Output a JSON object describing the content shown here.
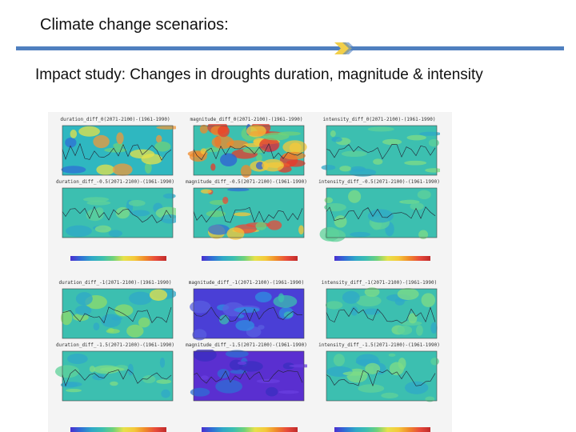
{
  "slide": {
    "title": "Climate change scenarios:",
    "subtitle": "Impact study: Changes in droughts duration, magnitude & intensity",
    "accent_color": "#4f7fbf"
  },
  "figure": {
    "panels": [
      {
        "id": "p00",
        "title": "duration_diff_0(2071-2100)-(1961-1990)",
        "palette": "mixed-cool"
      },
      {
        "id": "p01",
        "title": "magnitude_diff_0(2071-2100)-(1961-1990)",
        "palette": "warm-hot"
      },
      {
        "id": "p02",
        "title": "intensity_diff_0(2071-2100)-(1961-1990)",
        "palette": "teal"
      },
      {
        "id": "p10",
        "title": "duration_diff_-0.5(2071-2100)-(1961-1990)",
        "palette": "teal"
      },
      {
        "id": "p11",
        "title": "magnitude_diff_-0.5(2071-2100)-(1961-1990)",
        "palette": "mixed-warm"
      },
      {
        "id": "p12",
        "title": "intensity_diff_-0.5(2071-2100)-(1961-1990)",
        "palette": "teal"
      },
      {
        "id": "p20",
        "title": "duration_diff_-1(2071-2100)-(1961-1990)",
        "palette": "mixed-green"
      },
      {
        "id": "p21",
        "title": "magnitude_diff_-1(2071-2100)-(1961-1990)",
        "palette": "blue-purple"
      },
      {
        "id": "p22",
        "title": "intensity_diff_-1(2071-2100)-(1961-1990)",
        "palette": "teal"
      },
      {
        "id": "p30",
        "title": "duration_diff_-1.5(2071-2100)-(1961-1990)",
        "palette": "teal"
      },
      {
        "id": "p31",
        "title": "magnitude_diff_-1.5(2071-2100)-(1961-1990)",
        "palette": "purple"
      },
      {
        "id": "p32",
        "title": "intensity_diff_-1.5(2071-2100)-(1961-1990)",
        "palette": "teal"
      }
    ]
  }
}
